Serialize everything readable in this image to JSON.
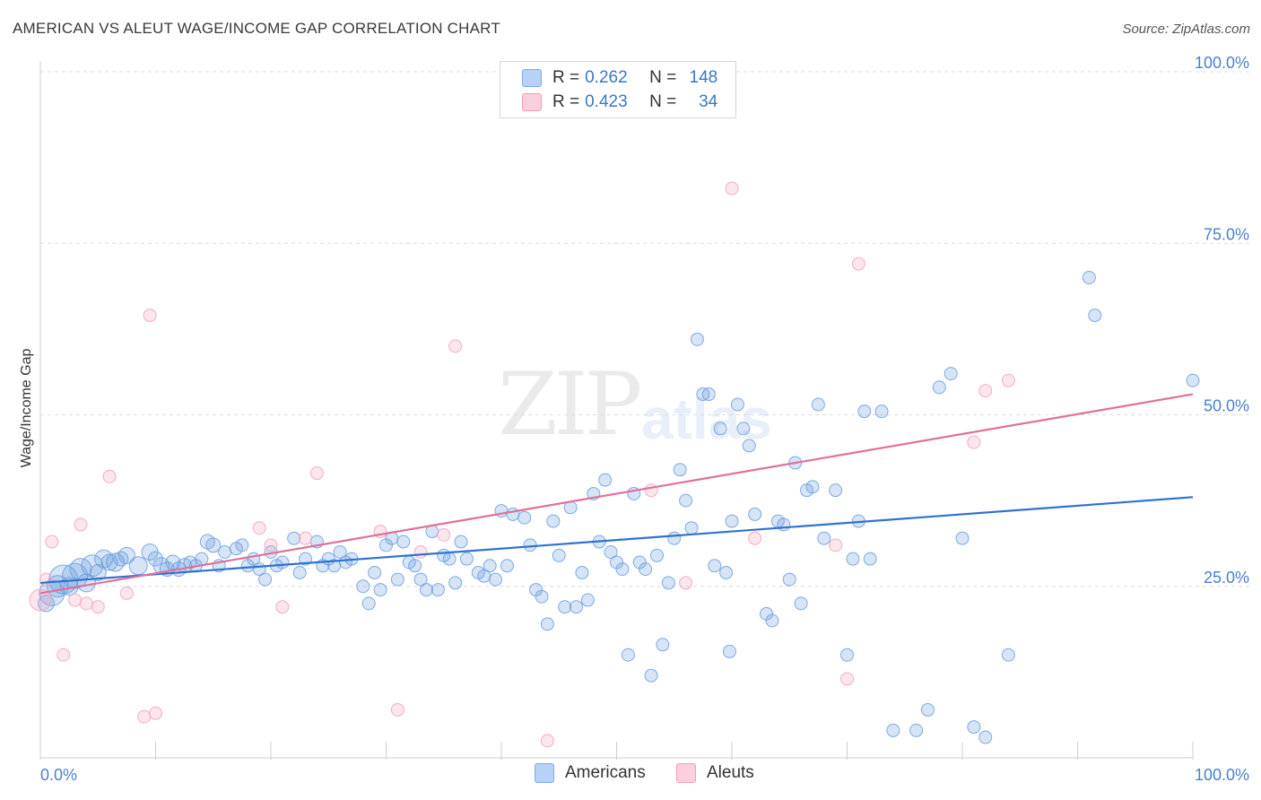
{
  "header": {
    "title": "AMERICAN VS ALEUT WAGE/INCOME GAP CORRELATION CHART",
    "source": "Source: ZipAtlas.com"
  },
  "legend": {
    "rows": [
      {
        "r_label": "R =",
        "r_value": "0.262",
        "n_label": "N =",
        "n_value": "148",
        "color": "#7aaae8",
        "fill": "#b8d2f5"
      },
      {
        "r_label": "R =",
        "r_value": "0.423",
        "n_label": "N =",
        "n_value": "34",
        "color": "#f0a0b8",
        "fill": "#fbd0dc"
      }
    ]
  },
  "bottom_legend": {
    "americans": "Americans",
    "aleuts": "Aleuts"
  },
  "watermark": {
    "zip": "ZIP",
    "atlas": "atlas"
  },
  "chart_data": {
    "type": "scatter",
    "xlabel": "",
    "ylabel": "Wage/Income Gap",
    "xlim": [
      0,
      100
    ],
    "ylim": [
      0,
      100
    ],
    "x_tick_labels": [
      "0.0%",
      "100.0%"
    ],
    "y_tick_labels": [
      "25.0%",
      "50.0%",
      "75.0%",
      "100.0%"
    ],
    "y_ticks": [
      25,
      50,
      75,
      100
    ],
    "grid": "dashed-horizontal",
    "colors": {
      "americans": "#6a9fe0",
      "aleuts": "#f3a5bf",
      "american_line": "#2f72d0",
      "aleut_line": "#e0709a"
    },
    "series": [
      {
        "name": "Americans",
        "trend": [
          [
            0,
            25.5
          ],
          [
            100,
            38
          ]
        ],
        "points": [
          [
            0.5,
            22.5,
            9
          ],
          [
            1,
            24,
            14
          ],
          [
            1.5,
            25,
            12
          ],
          [
            2,
            26,
            16
          ],
          [
            2.5,
            25,
            10
          ],
          [
            3,
            26.5,
            14
          ],
          [
            3.5,
            27.5,
            12
          ],
          [
            4,
            25.5,
            10
          ],
          [
            4.5,
            28,
            12
          ],
          [
            5,
            27,
            9
          ],
          [
            5.5,
            29,
            10
          ],
          [
            6,
            28.5,
            9
          ],
          [
            6.5,
            28.5,
            10
          ],
          [
            7,
            29,
            8
          ],
          [
            7.5,
            29.5,
            9
          ],
          [
            8.5,
            28,
            10
          ],
          [
            9.5,
            30,
            9
          ],
          [
            10,
            29,
            8
          ],
          [
            10.5,
            28,
            9
          ],
          [
            11,
            27.5,
            8
          ],
          [
            11.5,
            28.5,
            8
          ],
          [
            12,
            27.5,
            8
          ],
          [
            12.5,
            28,
            8
          ],
          [
            13,
            28.5,
            7
          ],
          [
            13.5,
            28,
            7
          ],
          [
            14,
            29,
            7
          ],
          [
            14.5,
            31.5,
            8
          ],
          [
            15,
            31,
            8
          ],
          [
            15.5,
            28,
            7
          ],
          [
            16,
            30,
            7
          ],
          [
            17,
            30.5,
            7
          ],
          [
            17.5,
            31,
            7
          ],
          [
            18,
            28,
            7
          ],
          [
            18.5,
            29,
            7
          ],
          [
            19,
            27.5,
            7
          ],
          [
            19.5,
            26,
            7
          ],
          [
            20,
            30,
            7
          ],
          [
            20.5,
            28,
            7
          ],
          [
            21,
            28.5,
            7
          ],
          [
            22,
            32,
            7
          ],
          [
            22.5,
            27,
            7
          ],
          [
            23,
            29,
            7
          ],
          [
            24,
            31.5,
            7
          ],
          [
            24.5,
            28,
            7
          ],
          [
            25,
            29,
            7
          ],
          [
            25.5,
            28,
            7
          ],
          [
            26,
            30,
            7
          ],
          [
            26.5,
            28.5,
            7
          ],
          [
            27,
            29,
            7
          ],
          [
            28,
            25,
            7
          ],
          [
            28.5,
            22.5,
            7
          ],
          [
            29,
            27,
            7
          ],
          [
            29.5,
            24.5,
            7
          ],
          [
            30,
            31,
            7
          ],
          [
            30.5,
            32,
            7
          ],
          [
            31,
            26,
            7
          ],
          [
            31.5,
            31.5,
            7
          ],
          [
            32,
            28.5,
            7
          ],
          [
            32.5,
            28,
            7
          ],
          [
            33,
            26,
            7
          ],
          [
            33.5,
            24.5,
            7
          ],
          [
            34,
            33,
            7
          ],
          [
            34.5,
            24.5,
            7
          ],
          [
            35,
            29.5,
            7
          ],
          [
            35.5,
            29,
            7
          ],
          [
            36,
            25.5,
            7
          ],
          [
            36.5,
            31.5,
            7
          ],
          [
            37,
            29,
            7
          ],
          [
            38,
            27,
            7
          ],
          [
            38.5,
            26.5,
            7
          ],
          [
            39,
            28,
            7
          ],
          [
            39.5,
            26,
            7
          ],
          [
            40,
            36,
            7
          ],
          [
            40.5,
            28,
            7
          ],
          [
            41,
            35.5,
            7
          ],
          [
            42,
            35,
            7
          ],
          [
            42.5,
            31,
            7
          ],
          [
            43,
            24.5,
            7
          ],
          [
            43.5,
            23.5,
            7
          ],
          [
            44,
            19.5,
            7
          ],
          [
            44.5,
            34.5,
            7
          ],
          [
            45,
            29.5,
            7
          ],
          [
            45.5,
            22,
            7
          ],
          [
            46,
            36.5,
            7
          ],
          [
            46.5,
            22,
            7
          ],
          [
            47,
            27,
            7
          ],
          [
            47.5,
            23,
            7
          ],
          [
            48,
            38.5,
            7
          ],
          [
            48.5,
            31.5,
            7
          ],
          [
            49,
            40.5,
            7
          ],
          [
            49.5,
            30,
            7
          ],
          [
            50,
            28.5,
            7
          ],
          [
            50.5,
            27.5,
            7
          ],
          [
            51,
            15,
            7
          ],
          [
            51.5,
            38.5,
            7
          ],
          [
            52,
            28.5,
            7
          ],
          [
            52.5,
            27.5,
            7
          ],
          [
            53,
            12,
            7
          ],
          [
            53.5,
            29.5,
            7
          ],
          [
            54,
            16.5,
            7
          ],
          [
            54.5,
            25.5,
            7
          ],
          [
            55,
            32,
            7
          ],
          [
            55.5,
            42,
            7
          ],
          [
            56,
            37.5,
            7
          ],
          [
            56.5,
            33.5,
            7
          ],
          [
            57,
            61,
            7
          ],
          [
            57.5,
            53,
            7
          ],
          [
            58,
            53,
            7
          ],
          [
            58.5,
            28,
            7
          ],
          [
            59,
            48,
            7
          ],
          [
            59.5,
            27,
            7
          ],
          [
            59.8,
            15.5,
            7
          ],
          [
            60,
            34.5,
            7
          ],
          [
            60.5,
            51.5,
            7
          ],
          [
            61,
            48,
            7
          ],
          [
            61.5,
            45.5,
            7
          ],
          [
            62,
            35.5,
            7
          ],
          [
            63,
            21,
            7
          ],
          [
            63.5,
            20,
            7
          ],
          [
            64,
            34.5,
            7
          ],
          [
            64.5,
            34,
            7
          ],
          [
            65,
            26,
            7
          ],
          [
            65.5,
            43,
            7
          ],
          [
            66,
            22.5,
            7
          ],
          [
            66.5,
            39,
            7
          ],
          [
            67,
            39.5,
            7
          ],
          [
            67.5,
            51.5,
            7
          ],
          [
            68,
            32,
            7
          ],
          [
            69,
            39,
            7
          ],
          [
            70,
            15,
            7
          ],
          [
            70.5,
            29,
            7
          ],
          [
            71,
            34.5,
            7
          ],
          [
            71.5,
            50.5,
            7
          ],
          [
            72,
            29,
            7
          ],
          [
            73,
            50.5,
            7
          ],
          [
            74,
            4,
            7
          ],
          [
            76,
            4,
            7
          ],
          [
            77,
            7,
            7
          ],
          [
            78,
            54,
            7
          ],
          [
            79,
            56,
            7
          ],
          [
            80,
            32,
            7
          ],
          [
            81,
            4.5,
            7
          ],
          [
            82,
            3,
            7
          ],
          [
            84,
            15,
            7
          ],
          [
            91,
            70,
            7
          ],
          [
            91.5,
            64.5,
            7
          ],
          [
            100,
            55,
            7
          ]
        ]
      },
      {
        "name": "Aleuts",
        "trend": [
          [
            0,
            24
          ],
          [
            100,
            53
          ]
        ],
        "points": [
          [
            0,
            23,
            12
          ],
          [
            0.5,
            26,
            7
          ],
          [
            1,
            31.5,
            7
          ],
          [
            2,
            15,
            7
          ],
          [
            3,
            23,
            7
          ],
          [
            3.5,
            34,
            7
          ],
          [
            4,
            22.5,
            7
          ],
          [
            5,
            22,
            7
          ],
          [
            6,
            41,
            7
          ],
          [
            7.5,
            24,
            7
          ],
          [
            9,
            6,
            7
          ],
          [
            9.5,
            64.5,
            7
          ],
          [
            10,
            6.5,
            7
          ],
          [
            19,
            33.5,
            7
          ],
          [
            20,
            31,
            7
          ],
          [
            21,
            22,
            7
          ],
          [
            23,
            32,
            7
          ],
          [
            24,
            41.5,
            7
          ],
          [
            29.5,
            33,
            7
          ],
          [
            31,
            7,
            7
          ],
          [
            33,
            30,
            7
          ],
          [
            35,
            32.5,
            7
          ],
          [
            36,
            60,
            7
          ],
          [
            44,
            2.5,
            7
          ],
          [
            53,
            39,
            7
          ],
          [
            56,
            25.5,
            7
          ],
          [
            60,
            83,
            7
          ],
          [
            62,
            32,
            7
          ],
          [
            69,
            31,
            7
          ],
          [
            70,
            11.5,
            7
          ],
          [
            71,
            72,
            7
          ],
          [
            81,
            46,
            7
          ],
          [
            82,
            53.5,
            7
          ],
          [
            84,
            55,
            7
          ]
        ]
      }
    ]
  }
}
